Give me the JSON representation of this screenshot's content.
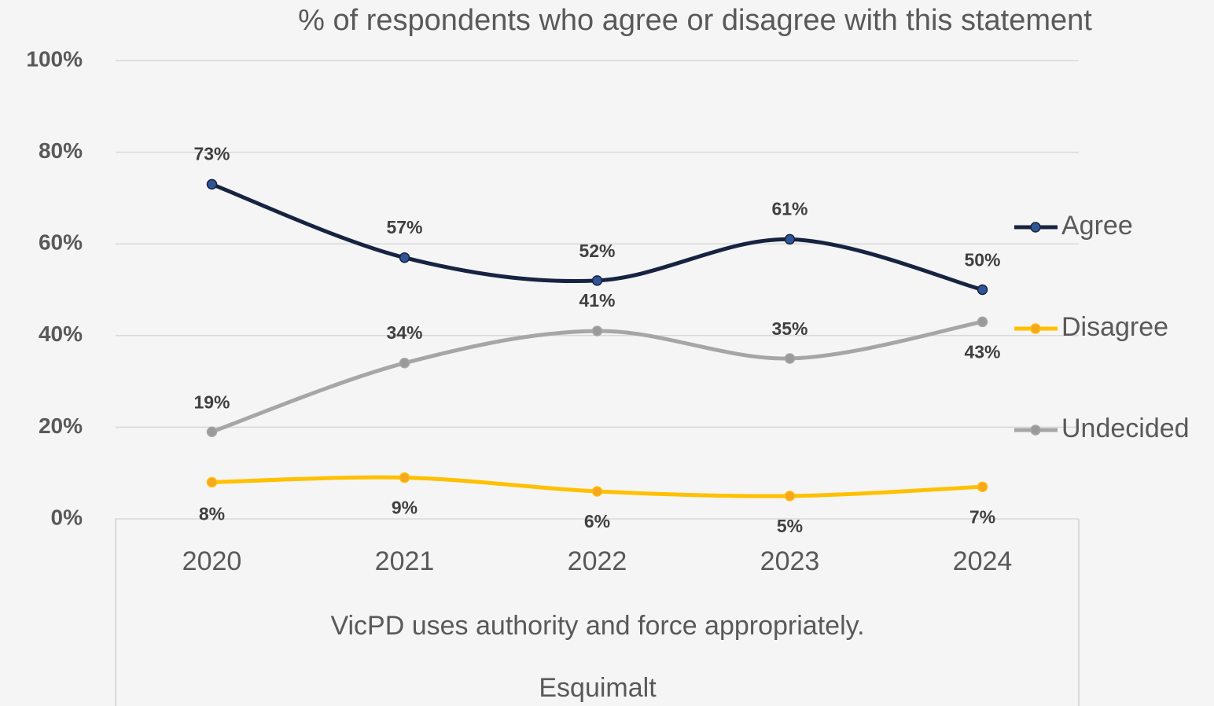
{
  "chart_data": {
    "type": "line",
    "title": "% of respondents who agree or disagree with this statement",
    "categories": [
      "2020",
      "2021",
      "2022",
      "2023",
      "2024"
    ],
    "x_label": "VicPD uses authority and force appropriately.",
    "x_group": "Esquimalt",
    "series": [
      {
        "name": "Agree",
        "color": "#172340",
        "marker_color": "#2f5597",
        "values": [
          73,
          57,
          52,
          61,
          50
        ],
        "value_labels": [
          "73%",
          "57%",
          "52%",
          "61%",
          "50%"
        ]
      },
      {
        "name": "Disagree",
        "color": "#ffc000",
        "marker_color": "#f5a623",
        "values": [
          8,
          9,
          6,
          5,
          7
        ],
        "value_labels": [
          "8%",
          "9%",
          "6%",
          "5%",
          "7%"
        ]
      },
      {
        "name": "Undecided",
        "color": "#a6a6a6",
        "marker_color": "#9a9a9a",
        "values": [
          19,
          34,
          41,
          35,
          43
        ],
        "value_labels": [
          "19%",
          "34%",
          "41%",
          "35%",
          "43%"
        ]
      }
    ],
    "ylim": [
      0,
      100
    ],
    "yticks": [
      {
        "value": 0,
        "label": "0%"
      },
      {
        "value": 20,
        "label": "20%"
      },
      {
        "value": 40,
        "label": "40%"
      },
      {
        "value": 60,
        "label": "60%"
      },
      {
        "value": 80,
        "label": "80%"
      },
      {
        "value": 100,
        "label": "100%"
      }
    ],
    "grid": true,
    "legend": "right"
  }
}
